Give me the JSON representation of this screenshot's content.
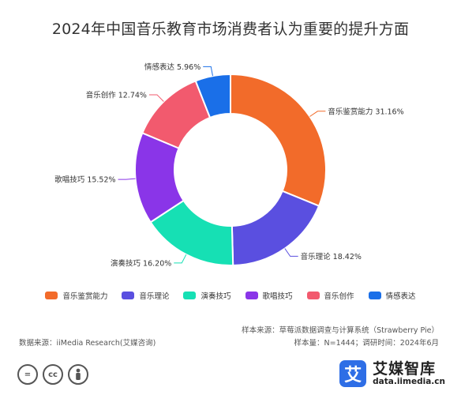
{
  "title": "2024年中国音乐教育市场消费者认为重要的提升方面",
  "chart_data": {
    "type": "pie",
    "donut": true,
    "title": "2024年中国音乐教育市场消费者认为重要的提升方面",
    "categories": [
      "音乐鉴赏能力",
      "音乐理论",
      "演奏技巧",
      "歌唱技巧",
      "音乐创作",
      "情感表达"
    ],
    "values": [
      31.16,
      18.42,
      16.2,
      15.52,
      12.74,
      5.96
    ],
    "data_labels": [
      "音乐鉴赏能力 31.16%",
      "音乐理论 18.42%",
      "演奏技巧 16.20%",
      "歌唱技巧 15.52%",
      "音乐创作 12.74%",
      "情感表达 5.96%"
    ],
    "colors": [
      "#f26b2a",
      "#5a4fe0",
      "#16e0b4",
      "#8a35e8",
      "#f25a6e",
      "#1a6fe8"
    ],
    "legend_position": "bottom"
  },
  "footer": {
    "sample_source": "样本来源：草莓派数据调查与计算系统（Strawberry Pie）",
    "data_source": "数据来源：iiMedia Research(艾媒咨询)",
    "sample_info": "样本量：N=1444；调研时间：2024年6月"
  },
  "license_icons": [
    "equal-icon",
    "cc-icon",
    "person-icon"
  ],
  "brand": {
    "logo_char": "艾",
    "name": "艾媒智库",
    "url": "data.iimedia.cn",
    "color": "#2e6ee6"
  }
}
